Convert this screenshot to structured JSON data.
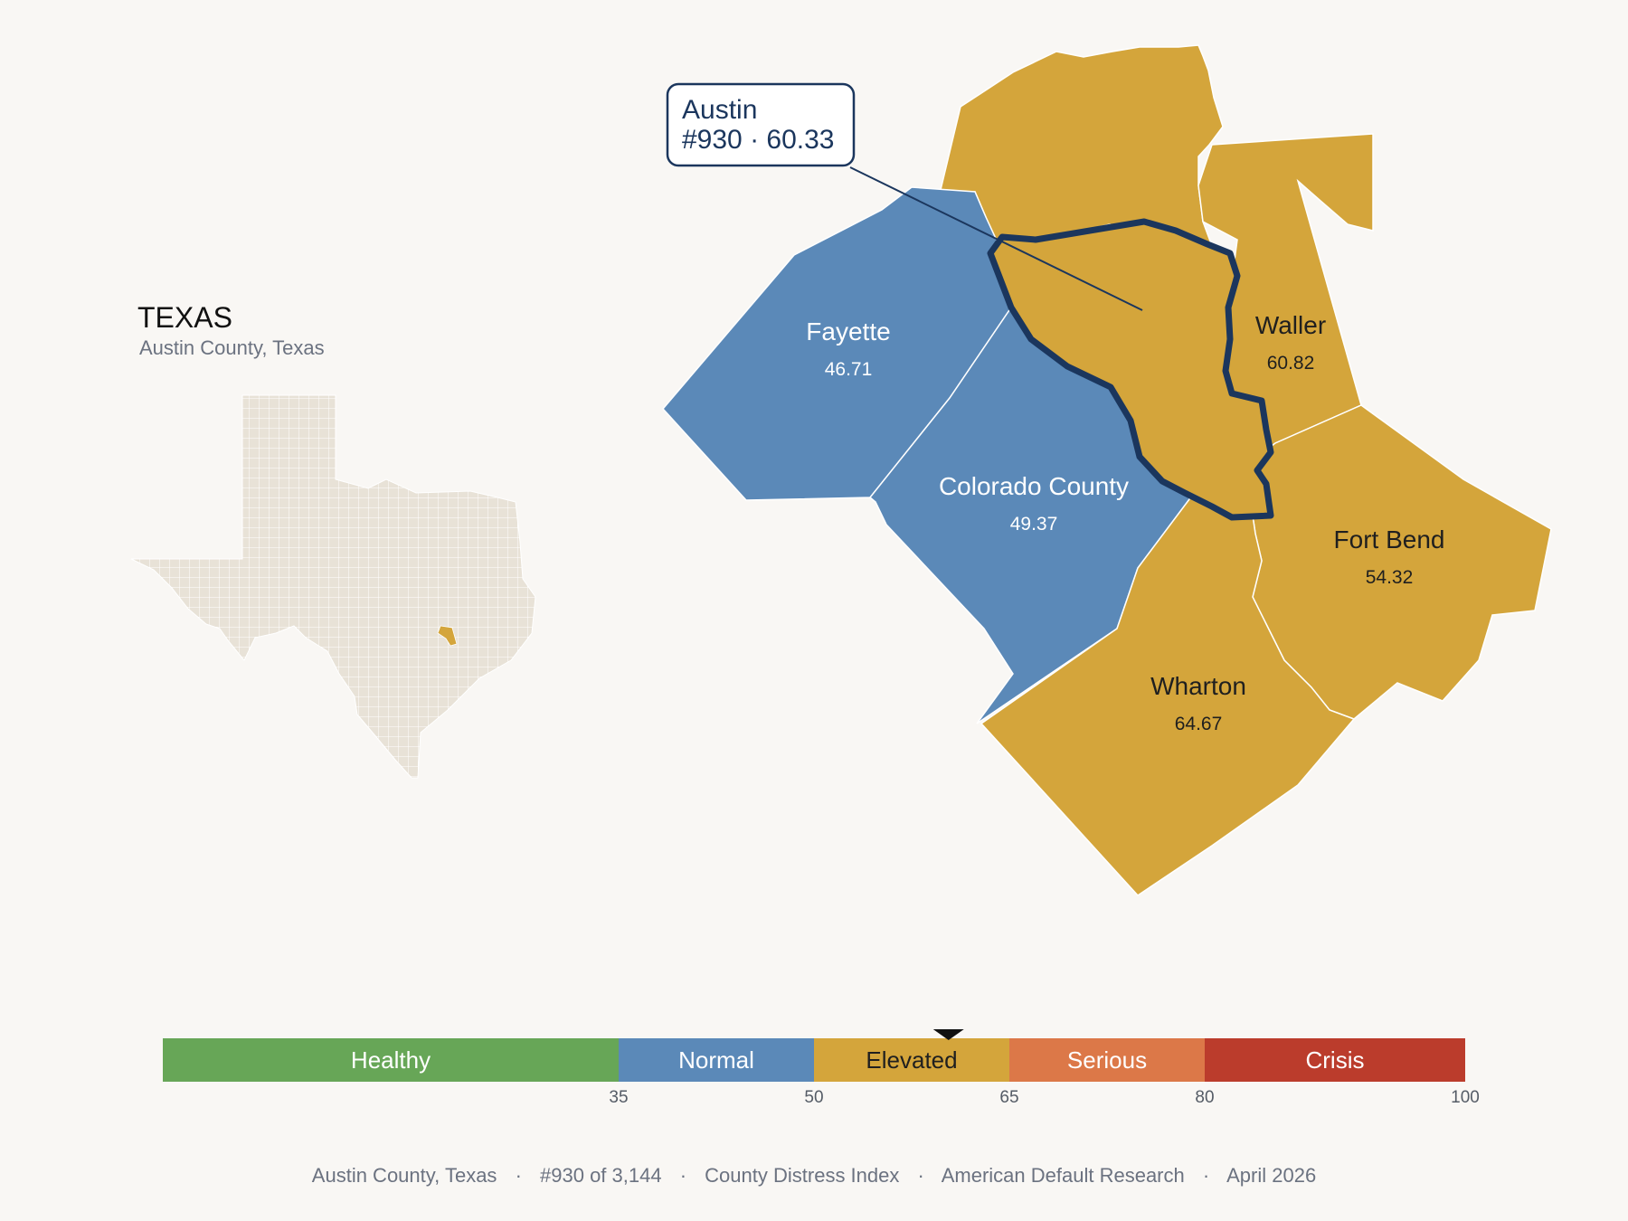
{
  "state_panel": {
    "title": "TEXAS",
    "subtitle": "Austin County, Texas"
  },
  "counties": [
    {
      "id": "fayette",
      "name": "Fayette",
      "score": "46.71",
      "category": "normal"
    },
    {
      "id": "colorado",
      "name": "Colorado County",
      "score": "49.37",
      "category": "normal"
    },
    {
      "id": "waller",
      "name": "Waller",
      "score": "60.82",
      "category": "elevated"
    },
    {
      "id": "fort-bend",
      "name": "Fort Bend",
      "score": "54.32",
      "category": "elevated"
    },
    {
      "id": "wharton",
      "name": "Wharton",
      "score": "64.67",
      "category": "elevated"
    },
    {
      "id": "north",
      "name": "",
      "score": "",
      "category": "elevated"
    },
    {
      "id": "austin",
      "name": "Austin",
      "score": "60.33",
      "category": "elevated",
      "focus": true
    }
  ],
  "callout": {
    "line1": "Austin",
    "line2": "#930 · 60.33"
  },
  "legend": {
    "bands": [
      {
        "label": "Healthy",
        "from": 0,
        "to": 35,
        "color": "#67a657"
      },
      {
        "label": "Normal",
        "from": 35,
        "to": 50,
        "color": "#5b89b8"
      },
      {
        "label": "Elevated",
        "from": 50,
        "to": 65,
        "color": "#d4a53b"
      },
      {
        "label": "Serious",
        "from": 65,
        "to": 80,
        "color": "#dc7848"
      },
      {
        "label": "Crisis",
        "from": 80,
        "to": 100,
        "color": "#bb3c2c"
      }
    ],
    "ticks": [
      "35",
      "50",
      "65",
      "80",
      "100"
    ],
    "marker_value": 60.33
  },
  "colors": {
    "normal": "#5b89b8",
    "elevated": "#d4a53b",
    "focus_outline": "#1b365d",
    "state_fill": "#e8e2d7"
  },
  "footer": {
    "place": "Austin County, Texas",
    "rank": "#930 of 3,144",
    "index": "County Distress Index",
    "source": "American Default Research",
    "date": "April 2026",
    "separator": "·"
  }
}
